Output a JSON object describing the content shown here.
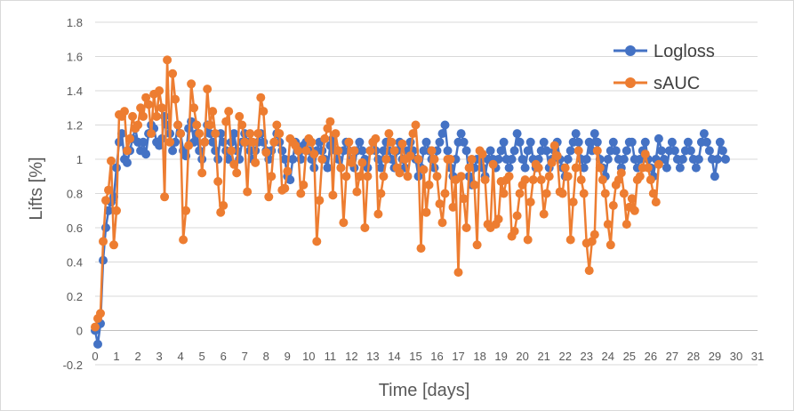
{
  "chart_data": {
    "type": "line",
    "title": "",
    "xlabel": "Time [days]",
    "ylabel": "Lifts [%]",
    "xlim": [
      0,
      31
    ],
    "ylim": [
      -0.2,
      1.8
    ],
    "xticks": [
      0,
      1,
      2,
      3,
      4,
      5,
      6,
      7,
      8,
      9,
      10,
      11,
      12,
      13,
      14,
      15,
      16,
      17,
      18,
      19,
      20,
      21,
      22,
      23,
      24,
      25,
      26,
      27,
      28,
      29,
      30,
      31
    ],
    "yticks": [
      -0.2,
      0,
      0.2,
      0.4,
      0.6,
      0.8,
      1,
      1.2,
      1.4,
      1.6,
      1.8
    ],
    "ytick_labels": [
      "-0.2",
      "0",
      "0.2",
      "0.4",
      "0.6",
      "0.8",
      "1",
      "1.2",
      "1.4",
      "1.6",
      "1.8"
    ],
    "grid": "horizontal",
    "legend": "top-right",
    "x_step": 0.125,
    "series": [
      {
        "name": "Logloss",
        "color": "#4472C4",
        "values": [
          0,
          -0.08,
          0.04,
          0.41,
          0.6,
          0.7,
          0.75,
          0.78,
          0.95,
          1.1,
          1.15,
          1.0,
          0.98,
          1.05,
          1.12,
          1.18,
          1.1,
          1.05,
          1.1,
          1.03,
          1.15,
          1.2,
          1.18,
          1.1,
          1.08,
          1.12,
          1.25,
          1.2,
          1.15,
          1.05,
          1.1,
          1.2,
          1.15,
          1.05,
          1.02,
          1.18,
          1.22,
          1.1,
          1.15,
          1.05,
          1.0,
          1.1,
          1.2,
          1.15,
          1.1,
          1.05,
          1.0,
          1.15,
          1.1,
          1.05,
          1.0,
          1.1,
          1.15,
          1.05,
          1.0,
          1.1,
          1.15,
          1.1,
          1.05,
          1.0,
          1.05,
          1.1,
          1.15,
          1.1,
          1.05,
          1.0,
          1.05,
          1.1,
          1.15,
          1.1,
          1.05,
          1.0,
          0.9,
          0.88,
          1.0,
          1.1,
          1.05,
          1.0,
          1.08,
          1.1,
          1.05,
          1.0,
          0.95,
          1.05,
          1.1,
          1.05,
          1.0,
          0.95,
          1.08,
          1.12,
          1.05,
          1.0,
          0.95,
          1.05,
          1.1,
          1.05,
          1.0,
          0.95,
          1.05,
          1.1,
          1.05,
          1.0,
          0.95,
          1.05,
          1.1,
          1.05,
          1.0,
          0.95,
          1.05,
          1.1,
          1.05,
          1.0,
          0.95,
          1.05,
          1.1,
          1.0,
          0.95,
          1.05,
          1.1,
          1.05,
          1.0,
          0.9,
          0.95,
          1.05,
          1.1,
          1.05,
          1.0,
          0.95,
          1.05,
          1.1,
          1.15,
          1.2,
          1.05,
          0.95,
          0.9,
          1.0,
          1.1,
          1.15,
          1.1,
          1.05,
          0.9,
          0.85,
          0.95,
          1.0,
          1.0,
          0.95,
          0.9,
          1.0,
          1.05,
          1.0,
          0.95,
          1.0,
          1.05,
          1.1,
          1.0,
          0.95,
          1.0,
          1.05,
          1.15,
          1.1,
          1.0,
          0.95,
          1.05,
          1.1,
          1.0,
          0.95,
          1.0,
          1.05,
          1.1,
          1.05,
          0.95,
          1.0,
          1.05,
          1.1,
          1.0,
          0.95,
          0.9,
          1.0,
          1.05,
          1.1,
          1.15,
          1.1,
          1.0,
          0.95,
          1.0,
          1.1,
          1.05,
          1.15,
          1.1,
          1.0,
          0.95,
          0.9,
          1.0,
          1.05,
          1.1,
          1.05,
          1.0,
          0.95,
          1.0,
          1.05,
          1.1,
          1.1,
          1.0,
          0.95,
          1.0,
          1.05,
          1.1,
          1.0,
          0.95,
          0.9,
          1.0,
          1.12,
          1.05,
          1.0,
          0.95,
          1.05,
          1.1,
          1.05,
          1.0,
          0.95,
          1.0,
          1.05,
          1.1,
          1.05,
          1.0,
          0.95,
          1.0,
          1.1,
          1.15,
          1.1,
          1.05,
          1.0,
          0.9,
          1.0,
          1.1,
          1.05,
          1.0
        ]
      },
      {
        "name": "sAUC",
        "color": "#ED7D31",
        "values": [
          0.02,
          0.07,
          0.1,
          0.52,
          0.76,
          0.82,
          0.99,
          0.5,
          0.7,
          1.26,
          1.25,
          1.28,
          1.05,
          1.12,
          1.25,
          1.18,
          1.2,
          1.3,
          1.25,
          1.36,
          1.32,
          1.15,
          1.38,
          1.25,
          1.4,
          1.3,
          0.78,
          1.58,
          1.1,
          1.5,
          1.35,
          1.2,
          1.15,
          0.53,
          0.7,
          1.08,
          1.44,
          1.3,
          1.2,
          1.15,
          0.92,
          1.1,
          1.41,
          1.2,
          1.28,
          1.15,
          0.87,
          0.69,
          0.73,
          1.22,
          1.28,
          1.05,
          0.97,
          0.92,
          1.25,
          1.2,
          1.1,
          0.81,
          1.15,
          1.1,
          0.98,
          1.15,
          1.36,
          1.28,
          1.04,
          0.78,
          0.9,
          1.1,
          1.2,
          1.15,
          0.82,
          0.83,
          0.93,
          1.12,
          1.1,
          1.08,
          1.05,
          0.8,
          0.85,
          1.05,
          1.12,
          1.1,
          1.03,
          0.52,
          0.76,
          1.0,
          1.12,
          1.18,
          1.22,
          0.79,
          1.15,
          1.05,
          0.95,
          0.63,
          0.9,
          1.1,
          0.98,
          1.05,
          0.81,
          0.9,
          0.98,
          0.6,
          0.9,
          1.05,
          1.1,
          1.12,
          0.68,
          0.8,
          0.9,
          1.0,
          1.15,
          1.1,
          1.05,
          0.95,
          0.92,
          1.09,
          1.0,
          0.9,
          1.02,
          1.15,
          1.2,
          1.0,
          0.48,
          0.94,
          0.69,
          0.85,
          1.05,
          1.0,
          0.9,
          0.74,
          0.63,
          0.8,
          1.0,
          1.0,
          0.72,
          0.88,
          0.34,
          0.9,
          0.77,
          0.6,
          0.95,
          1.0,
          0.85,
          0.5,
          1.05,
          1.03,
          0.88,
          0.62,
          0.6,
          0.97,
          0.62,
          0.65,
          0.87,
          0.8,
          0.88,
          0.9,
          0.55,
          0.58,
          0.67,
          0.8,
          0.85,
          0.88,
          0.53,
          0.75,
          0.88,
          0.97,
          0.95,
          0.88,
          0.68,
          0.8,
          0.9,
          0.98,
          1.08,
          1.02,
          0.81,
          0.8,
          0.95,
          0.9,
          0.53,
          0.75,
          0.95,
          1.05,
          0.88,
          0.8,
          0.51,
          0.35,
          0.52,
          0.56,
          1.05,
          0.95,
          0.88,
          0.8,
          0.62,
          0.5,
          0.73,
          0.85,
          0.88,
          0.92,
          0.8,
          0.62,
          0.72,
          0.77,
          0.7,
          0.88,
          0.9,
          0.95,
          1.03,
          0.95,
          0.88,
          0.8,
          0.75,
          0.97
        ]
      }
    ]
  }
}
